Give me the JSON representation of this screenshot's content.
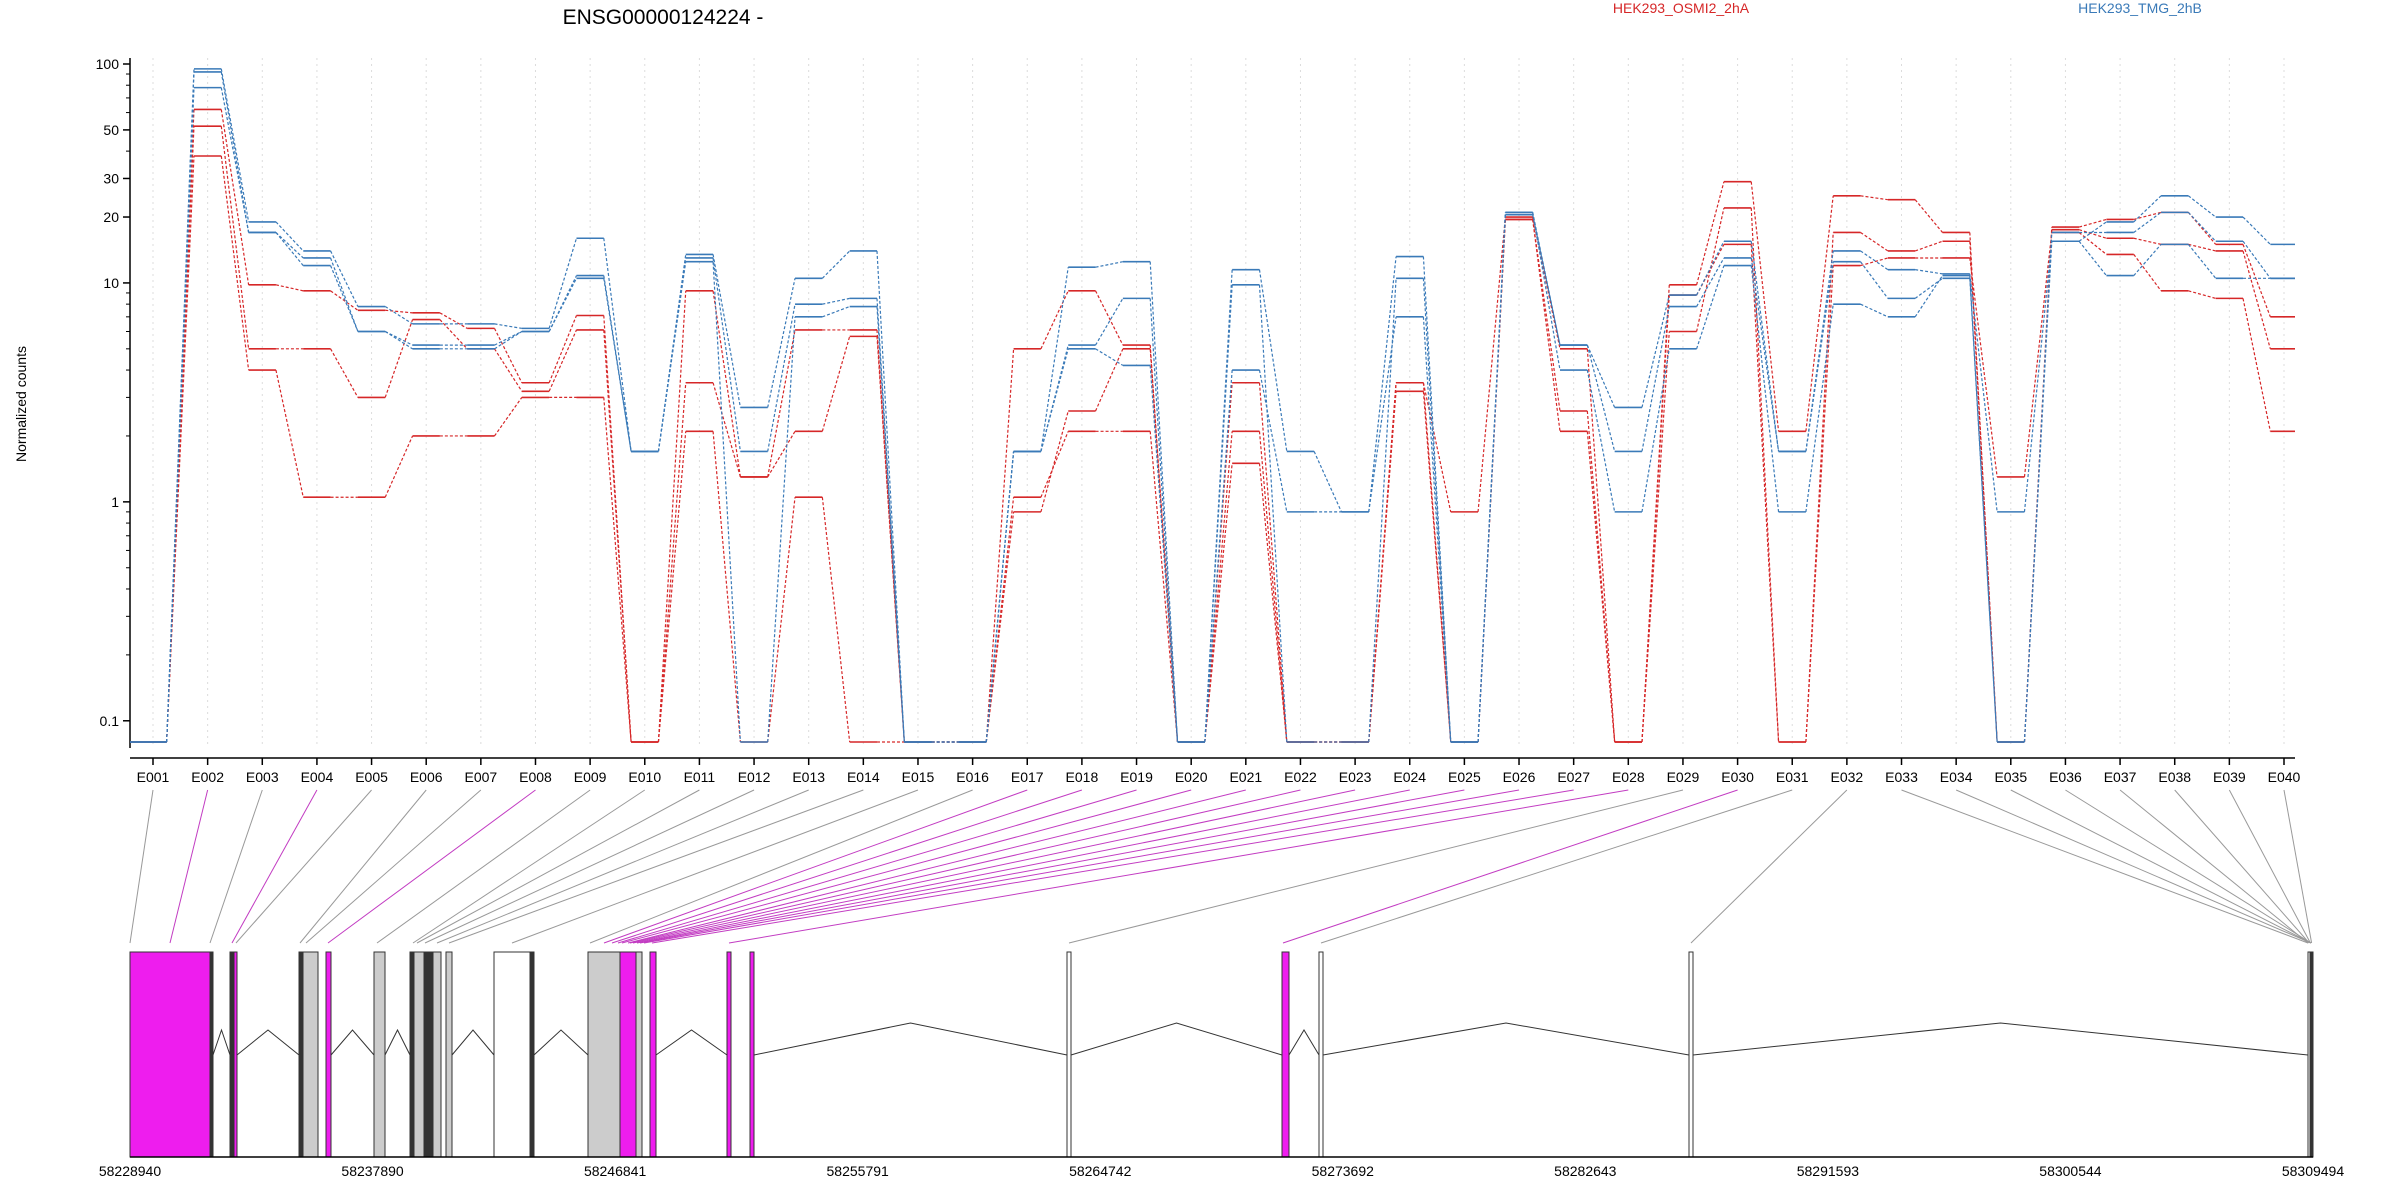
{
  "chart_data": {
    "type": "line",
    "title": "ENSG00000124224 -",
    "ylabel": "Normalized counts",
    "yscale": "log",
    "ylim": [
      0.08,
      100
    ],
    "yticks": [
      "0.1",
      "1",
      "10",
      "20",
      "30",
      "50",
      "100"
    ],
    "grid": "vertical dotted at each exon",
    "legend_position": "top",
    "colors": {
      "HEK293_OSMI2_2hA": "#d62728",
      "HEK293_TMG_2hB": "#3a7ab8",
      "highlight": "#ee1dee",
      "connector_gray": "#888888",
      "exon_gray": "#cccccc"
    },
    "categories": [
      "E001",
      "E002",
      "E003",
      "E004",
      "E005",
      "E006",
      "E007",
      "E008",
      "E009",
      "E010",
      "E011",
      "E012",
      "E013",
      "E014",
      "E015",
      "E016",
      "E017",
      "E018",
      "E019",
      "E020",
      "E021",
      "E022",
      "E023",
      "E024",
      "E025",
      "E026",
      "E027",
      "E028",
      "E029",
      "E030",
      "E031",
      "E032",
      "E033",
      "E034",
      "E035",
      "E036",
      "E037",
      "E038",
      "E039",
      "E040"
    ],
    "series": [
      {
        "name": "HEK293_OSMI2_2hA",
        "group": "HEK293_OSMI2_2hA",
        "values": [
          0.07,
          62,
          9.8,
          9.2,
          7.5,
          7.3,
          6.2,
          3.5,
          7.1,
          0.07,
          9.2,
          1.3,
          6.1,
          6.1,
          0.07,
          0.07,
          5.0,
          9.2,
          5.2,
          0.07,
          3.5,
          0.07,
          0.07,
          3.5,
          0.9,
          20,
          5.0,
          0.07,
          9.8,
          29,
          2.1,
          25,
          24,
          17,
          0.07,
          18,
          19.5,
          21,
          15,
          7
        ]
      },
      {
        "name": "HEK293_OSMI2_2hA",
        "group": "HEK293_OSMI2_2hA",
        "values": [
          0.07,
          52,
          5.0,
          5.0,
          3.0,
          6.8,
          5.0,
          3.2,
          6.1,
          0.07,
          3.5,
          1.3,
          2.1,
          5.7,
          0.07,
          0.07,
          0.9,
          2.6,
          5.0,
          0.07,
          2.1,
          0.07,
          0.07,
          3.2,
          0.07,
          19.5,
          2.6,
          0.07,
          6.0,
          22,
          0.07,
          17,
          14,
          15.5,
          0.07,
          17.5,
          16,
          15,
          14,
          5
        ]
      },
      {
        "name": "HEK293_OSMI2_2hA",
        "group": "HEK293_OSMI2_2hA",
        "values": [
          0.07,
          38,
          4.0,
          1.05,
          1.05,
          2.0,
          2.0,
          3.0,
          3.0,
          0.07,
          2.1,
          0.07,
          1.05,
          0.07,
          0.07,
          0.07,
          1.05,
          2.1,
          2.1,
          0.07,
          1.5,
          0.07,
          0.07,
          3.5,
          0.07,
          19.5,
          2.1,
          0.07,
          8.8,
          15,
          0.07,
          12,
          13,
          13,
          1.3,
          17,
          13.5,
          9.2,
          8.5,
          2.1
        ]
      },
      {
        "name": "HEK293_TMG_2hB",
        "group": "HEK293_TMG_2hB",
        "values": [
          0.07,
          95,
          19,
          14,
          7.8,
          6.5,
          6.5,
          6.2,
          16,
          1.7,
          13.5,
          2.7,
          10.5,
          14,
          0.07,
          0.07,
          1.7,
          11.8,
          12.5,
          0.07,
          11.5,
          1.7,
          0.9,
          13.2,
          0.07,
          21,
          5.2,
          2.7,
          8.8,
          15.5,
          1.7,
          14,
          11.5,
          11,
          0.9,
          15.5,
          19,
          25,
          20,
          15
        ]
      },
      {
        "name": "HEK293_TMG_2hB",
        "group": "HEK293_TMG_2hB",
        "values": [
          0.07,
          92,
          17,
          13,
          6.0,
          5.2,
          5.2,
          6.0,
          10.8,
          1.7,
          13,
          1.7,
          8,
          8.5,
          0.07,
          0.07,
          1.7,
          5.2,
          8.5,
          0.07,
          9.8,
          0.07,
          0.07,
          10.5,
          0.07,
          20.5,
          5.2,
          1.7,
          7.8,
          13,
          1.7,
          12.5,
          8.5,
          10.5,
          0.07,
          17,
          17,
          21,
          15.5,
          10.5
        ]
      },
      {
        "name": "HEK293_TMG_2hB",
        "group": "HEK293_TMG_2hB",
        "values": [
          0.07,
          78,
          17,
          12,
          6.0,
          5.0,
          5.0,
          6.0,
          10.5,
          1.7,
          12.5,
          0.07,
          7,
          7.8,
          0.07,
          0.07,
          1.7,
          5.0,
          4.2,
          0.07,
          4.0,
          0.9,
          0.9,
          7.0,
          0.07,
          21,
          4.0,
          0.9,
          5.0,
          12,
          0.9,
          8,
          7,
          10.8,
          0.07,
          15.5,
          10.8,
          15,
          10.5,
          10.5
        ]
      }
    ],
    "genomic_axis": {
      "ticks": [
        "58228940",
        "58237890",
        "58246841",
        "58255791",
        "58264742",
        "58273692",
        "58282643",
        "58291593",
        "58300544",
        "58309494"
      ],
      "start": 58228940,
      "end": 58309494
    }
  }
}
